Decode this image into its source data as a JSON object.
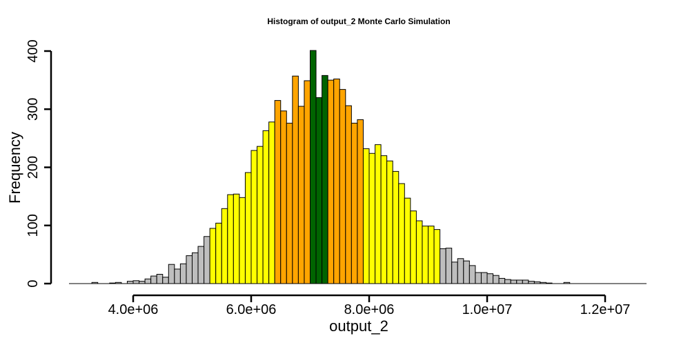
{
  "chart_data": {
    "type": "bar",
    "title": "Histogram of  output_2  Monte Carlo Simulation",
    "xlabel": "output_2",
    "ylabel": "Frequency",
    "bin_start": 3300000,
    "bin_width": 100000,
    "values": [
      2,
      0,
      0,
      1,
      2,
      0,
      4,
      5,
      4,
      8,
      13,
      16,
      11,
      33,
      25,
      34,
      48,
      53,
      64,
      81,
      95,
      104,
      129,
      153,
      154,
      148,
      191,
      229,
      236,
      263,
      278,
      315,
      297,
      276,
      357,
      305,
      349,
      401,
      320,
      358,
      350,
      352,
      334,
      306,
      276,
      282,
      232,
      224,
      239,
      220,
      211,
      193,
      172,
      147,
      125,
      108,
      99,
      99,
      93,
      60,
      61,
      37,
      43,
      39,
      31,
      19,
      19,
      17,
      14,
      9,
      7,
      6,
      6,
      6,
      4,
      3,
      2,
      1,
      0,
      0,
      2
    ],
    "colors": {
      "gray": "#bebebe",
      "yellow": "#ffff00",
      "orange": "#ffa500",
      "green": "#006400"
    },
    "color_ranges": [
      {
        "color": "gray",
        "from": 3300000,
        "to": 5300000
      },
      {
        "color": "yellow",
        "from": 5300000,
        "to": 6400000
      },
      {
        "color": "orange",
        "from": 6400000,
        "to": 7000000
      },
      {
        "color": "green",
        "from": 7000000,
        "to": 7300000
      },
      {
        "color": "orange",
        "from": 7300000,
        "to": 7900000
      },
      {
        "color": "yellow",
        "from": 7900000,
        "to": 9200000
      },
      {
        "color": "gray",
        "from": 9200000,
        "to": 11400000
      }
    ],
    "x_ticks": [
      4000000,
      6000000,
      8000000,
      10000000,
      12000000
    ],
    "x_tick_labels": [
      "4.0e+06",
      "6.0e+06",
      "8.0e+06",
      "1.0e+07",
      "1.2e+07"
    ],
    "y_ticks": [
      0,
      100,
      200,
      300,
      400
    ],
    "y_tick_labels": [
      "0",
      "100",
      "200",
      "300",
      "400"
    ],
    "xlim": [
      4000000,
      12000000
    ],
    "ylim": [
      0,
      400
    ],
    "grid": false,
    "legend": "none"
  }
}
